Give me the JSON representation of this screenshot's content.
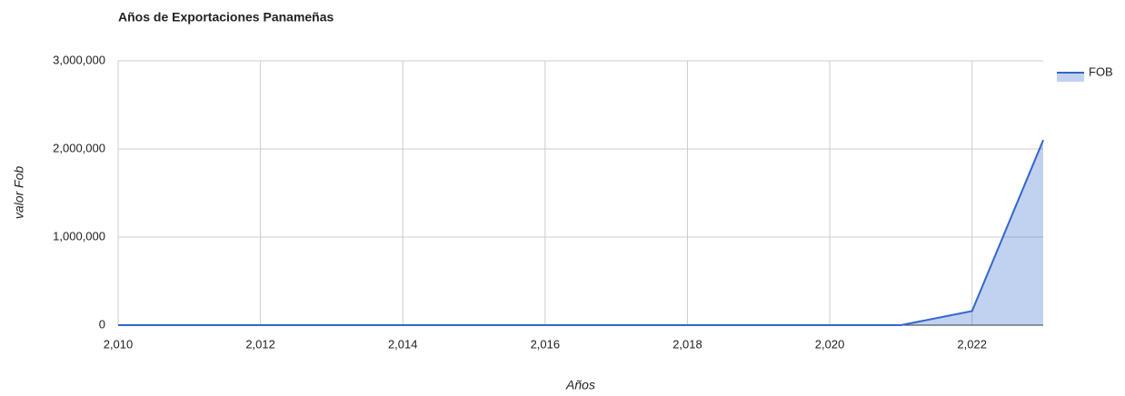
{
  "chart_data": {
    "type": "area",
    "title": "Años de Exportaciones Panameñas",
    "x_label": "Años",
    "y_label": "valor Fob",
    "x": [
      2010,
      2011,
      2012,
      2013,
      2014,
      2015,
      2016,
      2017,
      2018,
      2019,
      2020,
      2021,
      2022,
      2023
    ],
    "series": [
      {
        "name": "FOB",
        "color": "#3366cc",
        "values": [
          0,
          0,
          0,
          0,
          0,
          0,
          0,
          0,
          0,
          0,
          0,
          0,
          160000,
          2100000
        ]
      }
    ],
    "xlim": [
      2010,
      2023
    ],
    "xticks": [
      {
        "value": 2010,
        "label": "2,010"
      },
      {
        "value": 2012,
        "label": "2,012"
      },
      {
        "value": 2014,
        "label": "2,014"
      },
      {
        "value": 2016,
        "label": "2,016"
      },
      {
        "value": 2018,
        "label": "2,018"
      },
      {
        "value": 2020,
        "label": "2,020"
      },
      {
        "value": 2022,
        "label": "2,022"
      }
    ],
    "ylim": [
      0,
      3000000
    ],
    "yticks": [
      0,
      {
        "value": 1000000,
        "label": "1,000,000"
      },
      {
        "value": 2000000,
        "label": "2,000,000"
      },
      {
        "value": 3000000,
        "label": "3,000,000"
      }
    ],
    "grid": true,
    "legend": "right"
  }
}
